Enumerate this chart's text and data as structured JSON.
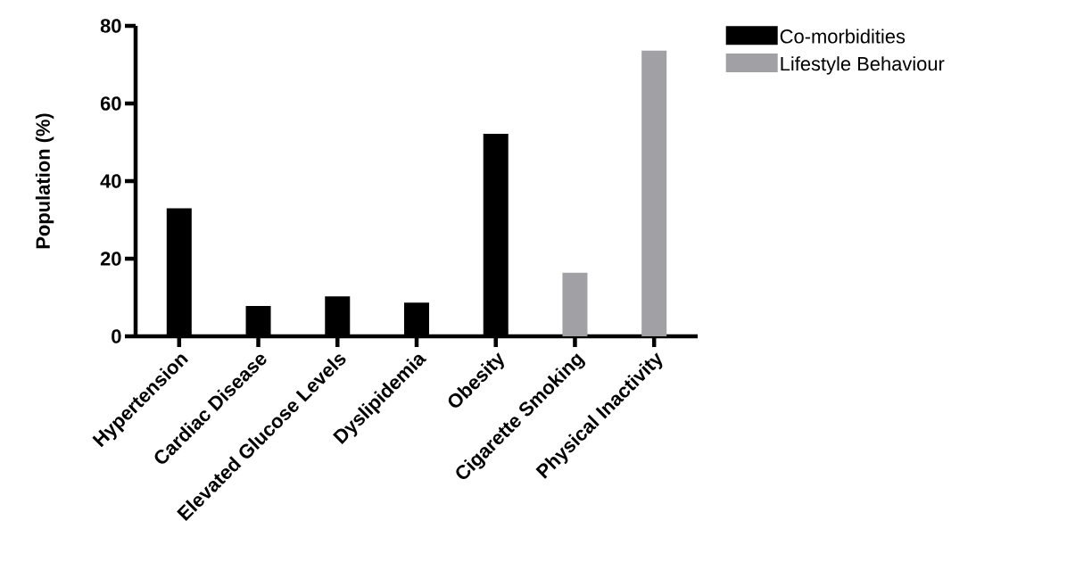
{
  "chart_data": {
    "type": "bar",
    "ylabel": "Population (%)",
    "categories": [
      "Hypertension",
      "Cardiac Disease",
      "Elevated Glucose Levels",
      "Dyslipidemia",
      "Obesity",
      "Cigarette Smoking",
      "Physical Inactivity"
    ],
    "series": [
      {
        "name": "Co-morbidities",
        "color": "#000000",
        "values": [
          33,
          7.8,
          10.3,
          8.7,
          52.2,
          null,
          null
        ]
      },
      {
        "name": "Lifestyle Behaviour",
        "color": "#a0a0a5",
        "values": [
          null,
          null,
          null,
          null,
          null,
          16.4,
          73.6
        ]
      }
    ],
    "ylim": [
      0,
      80
    ],
    "yticks": [
      0,
      20,
      40,
      60,
      80
    ],
    "legend": "top right"
  }
}
